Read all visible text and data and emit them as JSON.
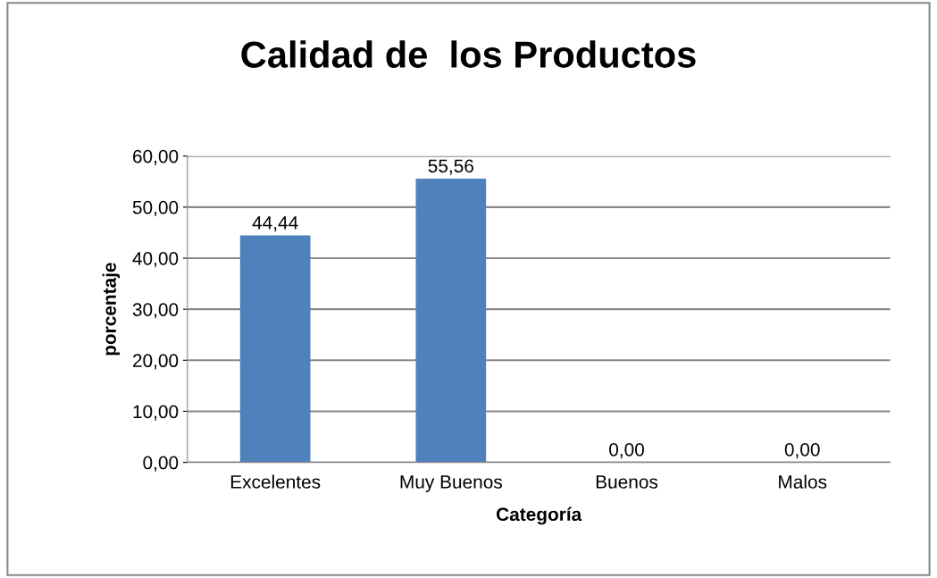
{
  "chart_data": {
    "type": "bar",
    "title": "Calidad de  los Productos",
    "xlabel": "Categoría",
    "ylabel": "porcentaje",
    "categories": [
      "Excelentes",
      "Muy Buenos",
      "Buenos",
      "Malos"
    ],
    "values": [
      44.44,
      55.56,
      0,
      0
    ],
    "color": "#4f81bd",
    "value_labels": [
      "44,44",
      "55,56",
      "0,00",
      "0,00"
    ],
    "ylim": [
      0,
      60
    ],
    "yticks": [
      {
        "value": 0,
        "label": "0,00"
      },
      {
        "value": 10,
        "label": "10,00"
      },
      {
        "value": 20,
        "label": "20,00"
      },
      {
        "value": 30,
        "label": "30,00"
      },
      {
        "value": 40,
        "label": "40,00"
      },
      {
        "value": 50,
        "label": "50,00"
      },
      {
        "value": 60,
        "label": "60,00"
      }
    ],
    "grid": "y"
  }
}
